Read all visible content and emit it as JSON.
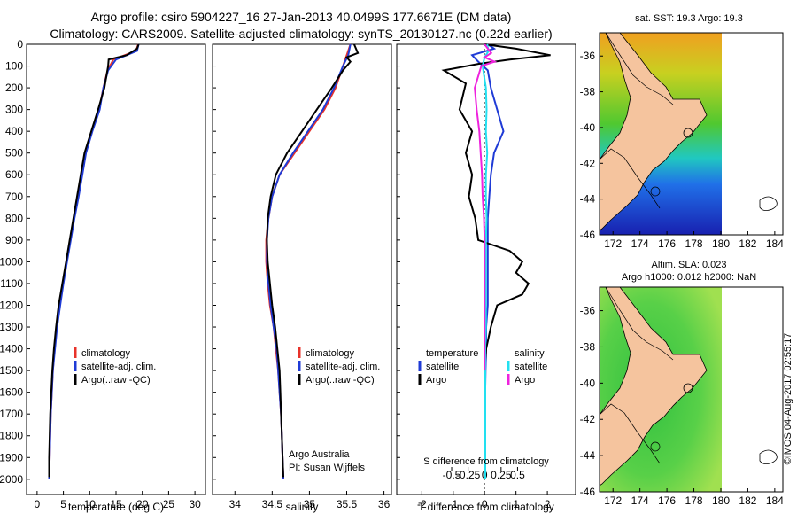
{
  "header": {
    "line1": "Argo profile: csiro 5904227_16 27-Jan-2013 40.0499S 177.6671E (DM data)",
    "line2": "Climatology: CARS2009. Satellite-adjusted climatology: synTS_20130127.nc (0.22d earlier)"
  },
  "colors": {
    "climatology": "#e8322a",
    "satellite": "#1f3bd6",
    "argo": "#000000",
    "sal_satellite": "#22e0f0",
    "sal_argo": "#ee22dd",
    "land": "#f5c49e",
    "nodata": "#ffffff"
  },
  "chart_data": [
    {
      "type": "line",
      "id": "temperature",
      "xlabel": "temperature (deg C)",
      "xlim": [
        -2,
        32
      ],
      "xticks": [
        0,
        5,
        10,
        15,
        20,
        25,
        30
      ],
      "ylim": [
        0,
        2070
      ],
      "yticks": [
        0,
        100,
        200,
        300,
        400,
        500,
        600,
        700,
        800,
        900,
        1000,
        1100,
        1200,
        1300,
        1400,
        1500,
        1600,
        1700,
        1800,
        1900,
        2000
      ],
      "legend": [
        "climatology",
        "satellite-adj. clim.",
        "Argo(..raw -QC)"
      ],
      "series": [
        {
          "name": "climatology",
          "color": "#e8322a",
          "points": [
            [
              19.2,
              0
            ],
            [
              18.8,
              30
            ],
            [
              14.5,
              70
            ],
            [
              13.4,
              120
            ],
            [
              12.6,
              200
            ],
            [
              11.8,
              300
            ],
            [
              10.4,
              400
            ],
            [
              9.2,
              500
            ],
            [
              8.5,
              600
            ],
            [
              7.8,
              700
            ],
            [
              7.0,
              800
            ],
            [
              6.3,
              900
            ],
            [
              5.6,
              1000
            ],
            [
              4.9,
              1100
            ],
            [
              4.3,
              1200
            ],
            [
              3.7,
              1300
            ],
            [
              3.3,
              1400
            ],
            [
              3.0,
              1500
            ],
            [
              2.8,
              1600
            ],
            [
              2.6,
              1700
            ],
            [
              2.5,
              1800
            ],
            [
              2.4,
              1900
            ],
            [
              2.3,
              2000
            ]
          ]
        },
        {
          "name": "satellite-adj. clim.",
          "color": "#1f3bd6",
          "points": [
            [
              19.3,
              0
            ],
            [
              19.0,
              30
            ],
            [
              15.0,
              70
            ],
            [
              13.5,
              120
            ],
            [
              12.6,
              200
            ],
            [
              11.9,
              300
            ],
            [
              10.5,
              400
            ],
            [
              9.3,
              500
            ],
            [
              8.6,
              600
            ],
            [
              7.9,
              700
            ],
            [
              7.1,
              800
            ],
            [
              6.4,
              900
            ],
            [
              5.7,
              1000
            ],
            [
              5.0,
              1100
            ],
            [
              4.4,
              1200
            ],
            [
              3.8,
              1300
            ],
            [
              3.4,
              1400
            ],
            [
              3.0,
              1500
            ],
            [
              2.8,
              1600
            ],
            [
              2.6,
              1700
            ],
            [
              2.5,
              1800
            ],
            [
              2.4,
              1900
            ],
            [
              2.3,
              2000
            ]
          ]
        },
        {
          "name": "Argo(..raw -QC)",
          "color": "#000000",
          "points": [
            [
              19.3,
              0
            ],
            [
              19.0,
              20
            ],
            [
              17.0,
              50
            ],
            [
              13.6,
              70
            ],
            [
              13.5,
              100
            ],
            [
              12.8,
              200
            ],
            [
              11.6,
              300
            ],
            [
              10.3,
              400
            ],
            [
              9.0,
              500
            ],
            [
              8.3,
              600
            ],
            [
              7.6,
              700
            ],
            [
              6.9,
              800
            ],
            [
              6.2,
              900
            ],
            [
              5.5,
              1000
            ],
            [
              4.8,
              1100
            ],
            [
              4.1,
              1200
            ],
            [
              3.6,
              1300
            ],
            [
              3.2,
              1400
            ],
            [
              2.9,
              1500
            ],
            [
              2.7,
              1600
            ],
            [
              2.5,
              1700
            ],
            [
              2.4,
              1800
            ],
            [
              2.3,
              1900
            ],
            [
              2.3,
              1990
            ]
          ]
        }
      ]
    },
    {
      "type": "line",
      "id": "salinity",
      "xlabel": "salinity",
      "xlim": [
        33.7,
        36.1
      ],
      "xticks": [
        34,
        34.5,
        35,
        35.5,
        36
      ],
      "ylim": [
        0,
        2070
      ],
      "legend": [
        "climatology",
        "satellite-adj. clim.",
        "Argo(..raw -QC)"
      ],
      "annotation": [
        "Argo Australia",
        "PI: Susan Wijffels"
      ],
      "series": [
        {
          "name": "climatology",
          "color": "#e8322a",
          "points": [
            [
              35.55,
              0
            ],
            [
              35.5,
              50
            ],
            [
              35.45,
              100
            ],
            [
              35.35,
              200
            ],
            [
              35.2,
              300
            ],
            [
              35.0,
              400
            ],
            [
              34.8,
              500
            ],
            [
              34.6,
              600
            ],
            [
              34.5,
              700
            ],
            [
              34.45,
              800
            ],
            [
              34.42,
              900
            ],
            [
              34.42,
              1000
            ],
            [
              34.44,
              1100
            ],
            [
              34.47,
              1200
            ],
            [
              34.52,
              1300
            ],
            [
              34.55,
              1400
            ],
            [
              34.58,
              1500
            ],
            [
              34.6,
              1600
            ],
            [
              34.62,
              1700
            ],
            [
              34.63,
              1800
            ],
            [
              34.64,
              1900
            ],
            [
              34.65,
              2000
            ]
          ]
        },
        {
          "name": "satellite-adj. clim.",
          "color": "#1f3bd6",
          "points": [
            [
              35.55,
              0
            ],
            [
              35.52,
              50
            ],
            [
              35.45,
              100
            ],
            [
              35.33,
              200
            ],
            [
              35.18,
              300
            ],
            [
              34.98,
              400
            ],
            [
              34.78,
              500
            ],
            [
              34.6,
              600
            ],
            [
              34.5,
              700
            ],
            [
              34.45,
              800
            ],
            [
              34.43,
              900
            ],
            [
              34.43,
              1000
            ],
            [
              34.45,
              1100
            ],
            [
              34.48,
              1200
            ],
            [
              34.52,
              1300
            ],
            [
              34.56,
              1400
            ],
            [
              34.58,
              1500
            ],
            [
              34.6,
              1600
            ],
            [
              34.62,
              1700
            ],
            [
              34.63,
              1800
            ],
            [
              34.64,
              1900
            ],
            [
              34.65,
              2000
            ]
          ]
        },
        {
          "name": "Argo(..raw -QC)",
          "color": "#000000",
          "points": [
            [
              35.6,
              0
            ],
            [
              35.65,
              40
            ],
            [
              35.5,
              60
            ],
            [
              35.55,
              80
            ],
            [
              35.45,
              120
            ],
            [
              35.3,
              200
            ],
            [
              35.1,
              300
            ],
            [
              34.9,
              400
            ],
            [
              34.7,
              500
            ],
            [
              34.55,
              600
            ],
            [
              34.48,
              700
            ],
            [
              34.44,
              800
            ],
            [
              34.43,
              900
            ],
            [
              34.44,
              1000
            ],
            [
              34.47,
              1100
            ],
            [
              34.5,
              1200
            ],
            [
              34.54,
              1300
            ],
            [
              34.57,
              1400
            ],
            [
              34.6,
              1500
            ],
            [
              34.61,
              1600
            ],
            [
              34.62,
              1700
            ],
            [
              34.63,
              1800
            ],
            [
              34.64,
              1900
            ],
            [
              34.65,
              1990
            ]
          ]
        }
      ]
    },
    {
      "type": "line",
      "id": "difference",
      "xlabel": "T difference from climatology",
      "xlabel2": "S difference from climatology",
      "xlim": [
        -2.8,
        2.9
      ],
      "xticks": [
        -2,
        -1,
        0,
        1,
        2
      ],
      "xticks2": [
        -0.5,
        -0.25,
        0,
        0.25,
        0.5
      ],
      "xticklabels2": [
        "-0.5",
        "-0.25",
        "0",
        "0.25",
        "0.5"
      ],
      "ylim": [
        0,
        2070
      ],
      "legend_temperature": {
        "title": "temperature",
        "items": [
          "satellite",
          "Argo"
        ]
      },
      "legend_salinity": {
        "title": "salinity",
        "items": [
          "satellite",
          "Argo"
        ]
      },
      "series": [
        {
          "name": "T satellite",
          "color": "#1f3bd6",
          "points": [
            [
              0.1,
              0
            ],
            [
              0.3,
              20
            ],
            [
              -0.4,
              50
            ],
            [
              -0.2,
              80
            ],
            [
              0.1,
              120
            ],
            [
              0.2,
              200
            ],
            [
              0.4,
              300
            ],
            [
              0.6,
              400
            ],
            [
              0.3,
              500
            ],
            [
              0.2,
              600
            ],
            [
              0.15,
              700
            ],
            [
              0.1,
              800
            ],
            [
              0.1,
              900
            ],
            [
              0.1,
              1000
            ],
            [
              0.1,
              1100
            ],
            [
              0.1,
              1200
            ],
            [
              0.05,
              1300
            ],
            [
              0.05,
              1400
            ],
            [
              0.03,
              1500
            ],
            [
              0.02,
              1600
            ],
            [
              0.02,
              1700
            ],
            [
              0.02,
              1800
            ],
            [
              0.02,
              1900
            ],
            [
              0.02,
              2000
            ]
          ]
        },
        {
          "name": "T Argo",
          "color": "#000000",
          "points": [
            [
              0.0,
              0
            ],
            [
              1.0,
              20
            ],
            [
              2.1,
              50
            ],
            [
              0.8,
              70
            ],
            [
              -0.2,
              90
            ],
            [
              -1.3,
              120
            ],
            [
              -0.6,
              180
            ],
            [
              -0.8,
              300
            ],
            [
              -0.4,
              400
            ],
            [
              -0.6,
              500
            ],
            [
              -0.4,
              600
            ],
            [
              -0.5,
              700
            ],
            [
              -0.3,
              800
            ],
            [
              -0.2,
              900
            ],
            [
              0.8,
              950
            ],
            [
              1.2,
              1000
            ],
            [
              1.0,
              1050
            ],
            [
              1.4,
              1100
            ],
            [
              1.2,
              1150
            ],
            [
              0.4,
              1200
            ],
            [
              0.2,
              1300
            ],
            [
              0.05,
              1400
            ],
            [
              0.0,
              1500
            ],
            [
              0.0,
              1600
            ],
            [
              0.0,
              1800
            ],
            [
              0.0,
              2000
            ]
          ]
        },
        {
          "name": "S satellite",
          "color": "#22e0f0",
          "points": [
            [
              0.04,
              0
            ],
            [
              0.06,
              30
            ],
            [
              0.0,
              60
            ],
            [
              -0.03,
              100
            ],
            [
              0.02,
              200
            ],
            [
              0.03,
              300
            ],
            [
              0.02,
              400
            ],
            [
              0.04,
              500
            ],
            [
              0.02,
              600
            ],
            [
              0.02,
              700
            ],
            [
              0.03,
              800
            ],
            [
              0.02,
              900
            ],
            [
              0.02,
              1000
            ],
            [
              0.02,
              1100
            ],
            [
              0.02,
              1200
            ],
            [
              0.02,
              1300
            ],
            [
              0.01,
              1400
            ],
            [
              0.01,
              1500
            ],
            [
              0.01,
              1600
            ],
            [
              0.01,
              1700
            ],
            [
              0.01,
              1800
            ],
            [
              0.01,
              1900
            ],
            [
              0.01,
              2000
            ]
          ]
        },
        {
          "name": "S Argo",
          "color": "#ee22dd",
          "points": [
            [
              0.0,
              0
            ],
            [
              0.05,
              20
            ],
            [
              0.1,
              40
            ],
            [
              0.0,
              60
            ],
            [
              0.15,
              80
            ],
            [
              -0.05,
              100
            ],
            [
              -0.15,
              200
            ],
            [
              -0.12,
              300
            ],
            [
              -0.08,
              400
            ],
            [
              -0.06,
              500
            ],
            [
              -0.04,
              600
            ],
            [
              -0.03,
              700
            ],
            [
              -0.01,
              800
            ],
            [
              0.0,
              900
            ],
            [
              0.0,
              1000
            ],
            [
              0.0,
              1100
            ],
            [
              0.0,
              1200
            ],
            [
              0.0,
              1300
            ],
            [
              0.0,
              1400
            ],
            [
              0.0,
              1500
            ]
          ]
        }
      ]
    }
  ],
  "map_top": {
    "title": "sat. SST: 19.3 Argo: 19.3",
    "lat_ticks": [
      "-36",
      "-38",
      "-40",
      "-42",
      "-44",
      "-46"
    ],
    "lon_ticks": [
      "172",
      "174",
      "176",
      "178",
      "180",
      "182",
      "184"
    ]
  },
  "map_bottom": {
    "title1": "Altim. SLA: 0.023",
    "title2": "Argo h1000: 0.012 h2000: NaN",
    "lat_ticks": [
      "-36",
      "-38",
      "-40",
      "-42",
      "-44",
      "-46"
    ],
    "lon_ticks": [
      "172",
      "174",
      "176",
      "178",
      "180",
      "182",
      "184"
    ]
  },
  "credit": "©IMOS 04-Aug-2017 02:55:17"
}
